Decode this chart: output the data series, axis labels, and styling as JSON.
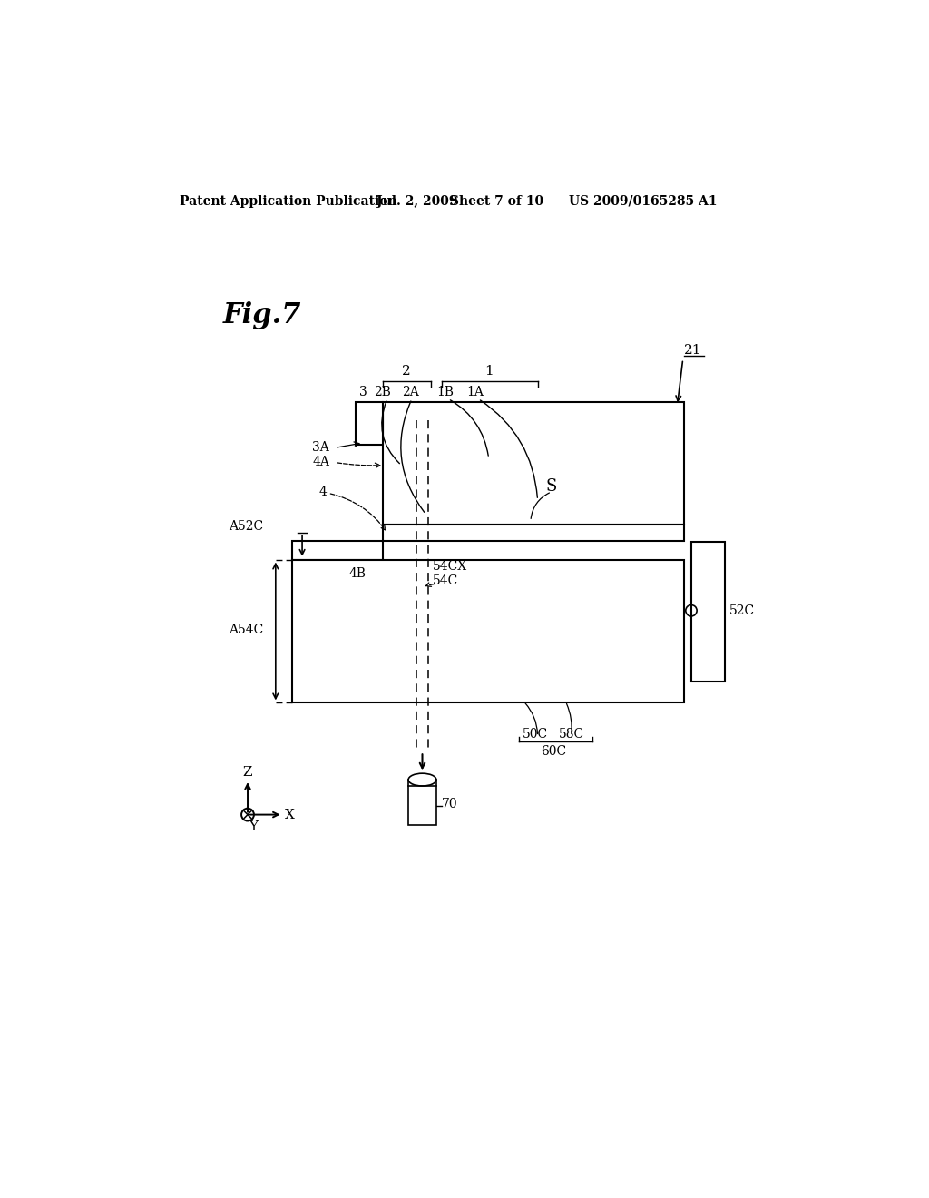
{
  "bg_color": "#ffffff",
  "header_text": "Patent Application Publication",
  "header_date": "Jul. 2, 2009",
  "header_sheet": "Sheet 7 of 10",
  "header_patent": "US 2009/0165285 A1",
  "fig_label": "Fig.7",
  "label_21": "21",
  "label_2": "2",
  "label_2B": "2B",
  "label_2A": "2A",
  "label_1": "1",
  "label_1B": "1B",
  "label_1A": "1A",
  "label_3": "3",
  "label_3A": "3A",
  "label_4A": "4A",
  "label_4": "4",
  "label_A52C": "A52C",
  "label_A54C": "A54C",
  "label_4B": "4B",
  "label_54CX": "54CX",
  "label_54C": "54C",
  "label_52C": "52C",
  "label_S": "S",
  "label_50C": "50C",
  "label_58C": "58C",
  "label_60C": "60C",
  "label_70": "70",
  "label_Z": "Z",
  "label_X": "X",
  "label_Y": "Y"
}
